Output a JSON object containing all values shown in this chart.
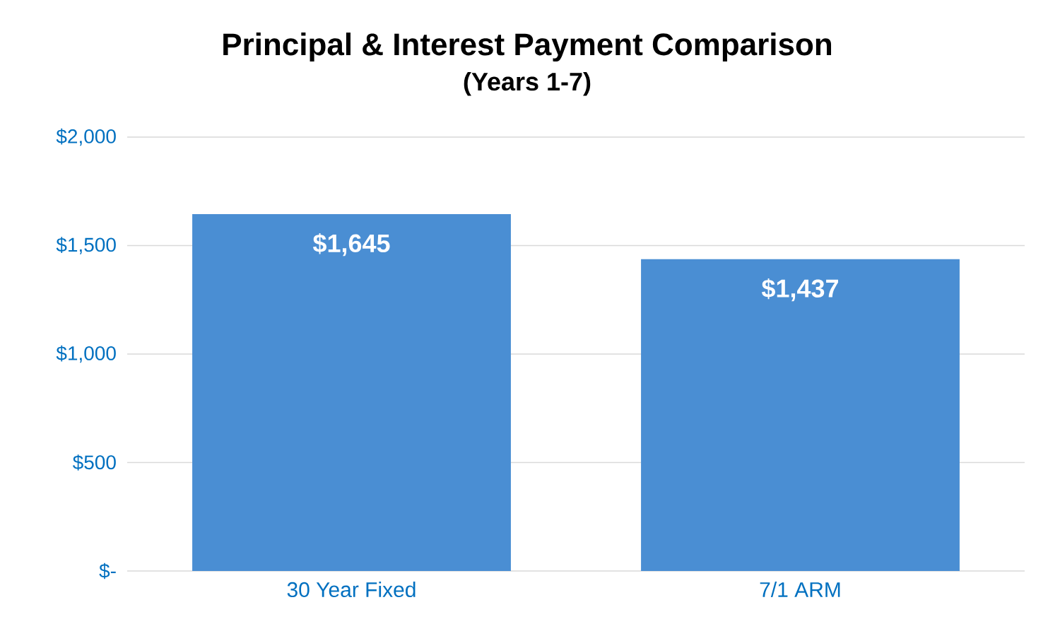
{
  "chart_data": {
    "type": "bar",
    "title": "Principal & Interest Payment Comparison",
    "subtitle": "(Years 1-7)",
    "categories": [
      "30 Year Fixed",
      "7/1 ARM"
    ],
    "values": [
      1645,
      1437
    ],
    "color": "#4a8ed3",
    "value_labels": [
      "$1,645",
      "$1,437"
    ],
    "ylim": [
      0,
      2000
    ],
    "yticks": [
      {
        "value": 0,
        "label": "$-"
      },
      {
        "value": 500,
        "label": "$500"
      },
      {
        "value": 1000,
        "label": "$1,000"
      },
      {
        "value": 1500,
        "label": "$1,500"
      },
      {
        "value": 2000,
        "label": "$2,000"
      }
    ],
    "grid": "y"
  }
}
